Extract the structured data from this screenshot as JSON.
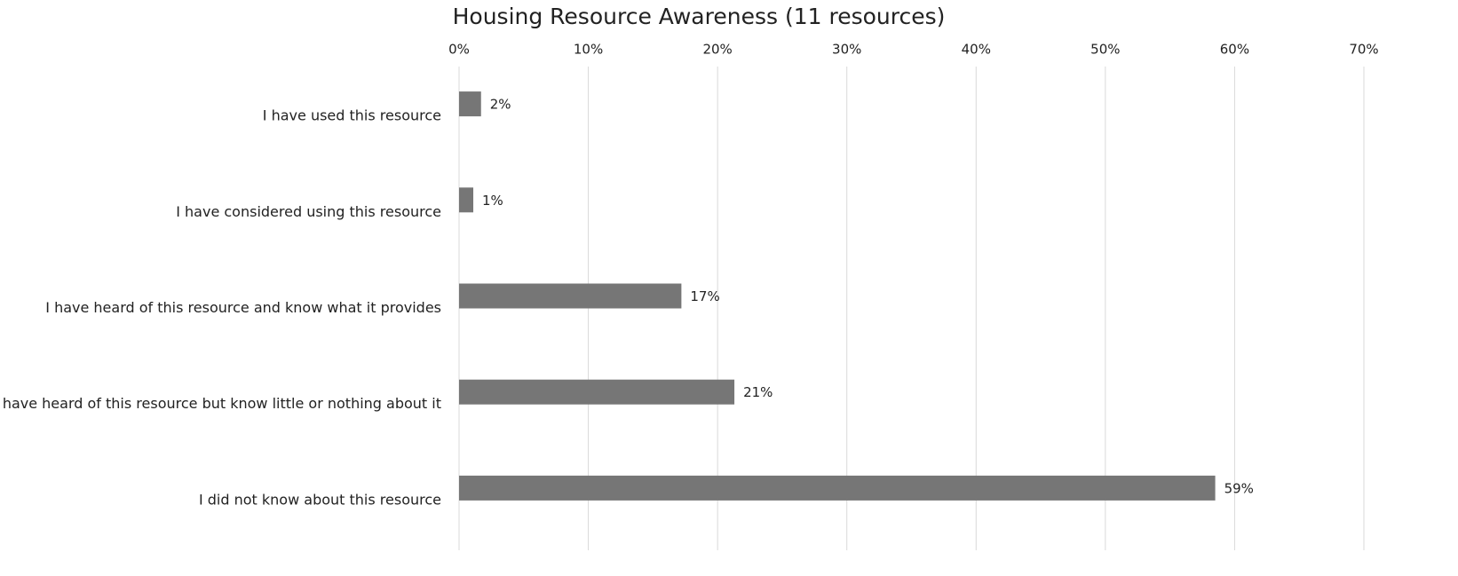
{
  "chart_data": {
    "type": "bar",
    "orientation": "horizontal",
    "title": "Housing Resource Awareness (11 resources)",
    "categories": [
      "I have used this resource",
      "I have considered using this resource",
      "I have heard of this resource and know what it provides",
      "I have heard of this resource but know little or nothing about it",
      "I did not know about this resource"
    ],
    "values": [
      1.7,
      1.1,
      17.2,
      21.3,
      58.5
    ],
    "value_labels": [
      "2%",
      "1%",
      "17%",
      "21%",
      "59%"
    ],
    "color": "#767676",
    "xlim": [
      0,
      70
    ],
    "xticks": [
      {
        "value": 0,
        "label": "0%"
      },
      {
        "value": 10,
        "label": "10%"
      },
      {
        "value": 20,
        "label": "20%"
      },
      {
        "value": 30,
        "label": "30%"
      },
      {
        "value": 40,
        "label": "40%"
      },
      {
        "value": 50,
        "label": "50%"
      },
      {
        "value": 60,
        "label": "60%"
      },
      {
        "value": 70,
        "label": "70%"
      }
    ],
    "grid": true
  }
}
